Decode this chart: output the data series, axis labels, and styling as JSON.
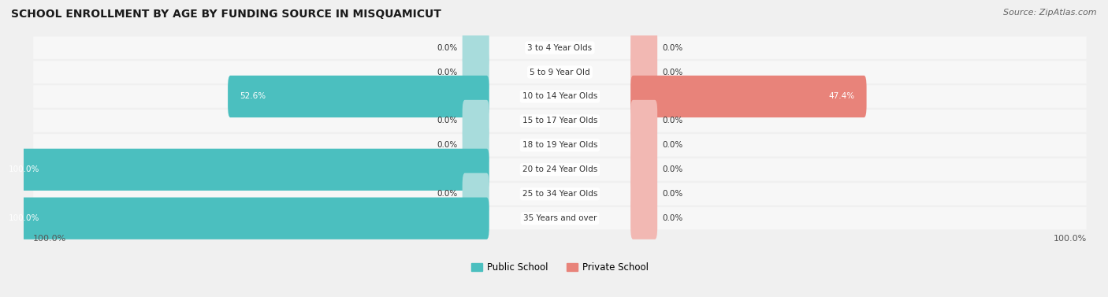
{
  "title": "SCHOOL ENROLLMENT BY AGE BY FUNDING SOURCE IN MISQUAMICUT",
  "source": "Source: ZipAtlas.com",
  "categories": [
    "3 to 4 Year Olds",
    "5 to 9 Year Old",
    "10 to 14 Year Olds",
    "15 to 17 Year Olds",
    "18 to 19 Year Olds",
    "20 to 24 Year Olds",
    "25 to 34 Year Olds",
    "35 Years and over"
  ],
  "public_values": [
    0.0,
    0.0,
    52.6,
    0.0,
    0.0,
    100.0,
    0.0,
    100.0
  ],
  "private_values": [
    0.0,
    0.0,
    47.4,
    0.0,
    0.0,
    0.0,
    0.0,
    0.0
  ],
  "public_color": "#4BBFBF",
  "private_color": "#E8837A",
  "public_color_light": "#A8DCDC",
  "private_color_light": "#F2B8B3",
  "bg_color": "#f0f0f0",
  "row_bg_color": "#f7f7f7",
  "label_color_white": "#ffffff",
  "label_color_dark": "#333333",
  "axis_label_left": "100.0%",
  "axis_label_right": "100.0%",
  "legend_public": "Public School",
  "legend_private": "Private School",
  "min_bar_display": 5.0,
  "figsize": [
    14.06,
    3.77
  ],
  "dpi": 100
}
